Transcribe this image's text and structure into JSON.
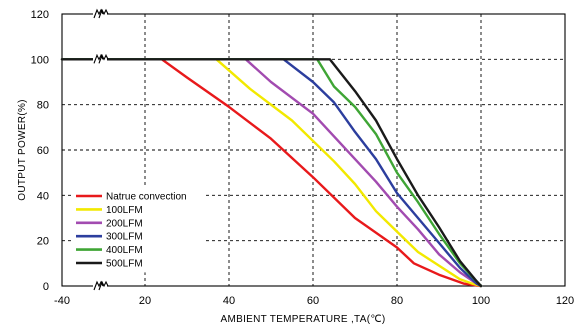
{
  "chart_data": {
    "type": "line",
    "xlabel": "AMBIENT TEMPERATURE ,TA(℃)",
    "ylabel": "OUTPUT POWER(%)",
    "xlim": [
      -40,
      120
    ],
    "ylim": [
      0,
      120
    ],
    "x_ticks": [
      "-40",
      "20",
      "40",
      "60",
      "80",
      "100",
      "120"
    ],
    "x_tick_values": [
      -40,
      20,
      40,
      60,
      80,
      100,
      120
    ],
    "y_ticks": [
      "0",
      "20",
      "40",
      "60",
      "80",
      "100",
      "120"
    ],
    "y_tick_values": [
      0,
      20,
      40,
      60,
      80,
      100,
      120
    ],
    "axis_break_x": 0,
    "grid": true,
    "legend_position": "bottom-left",
    "series": [
      {
        "name": "Natrue convection",
        "color": "#e8191b",
        "x": [
          -40,
          24,
          30,
          40,
          50,
          60,
          70,
          80,
          84,
          90,
          96,
          100
        ],
        "y": [
          100,
          100,
          92,
          79,
          65,
          48,
          30,
          17,
          10,
          5,
          1,
          0
        ]
      },
      {
        "name": "100LFM",
        "color": "#f2e900",
        "x": [
          -40,
          37,
          45,
          55,
          65,
          70,
          75,
          80,
          85,
          90,
          95,
          98,
          100
        ],
        "y": [
          100,
          100,
          87,
          73,
          55,
          45,
          33,
          24,
          15,
          9,
          3,
          1,
          0
        ]
      },
      {
        "name": "200LFM",
        "color": "#a24bb0",
        "x": [
          -40,
          44,
          50,
          60,
          70,
          75,
          80,
          85,
          90,
          95,
          99,
          100
        ],
        "y": [
          100,
          100,
          90,
          76,
          56,
          46,
          35,
          25,
          14,
          6,
          1,
          0
        ]
      },
      {
        "name": "300LFM",
        "color": "#2c3e9e",
        "x": [
          -40,
          53,
          60,
          65,
          70,
          75,
          80,
          85,
          90,
          95,
          99,
          100
        ],
        "y": [
          100,
          100,
          90,
          81,
          68,
          56,
          41,
          30,
          19,
          8,
          1,
          0
        ]
      },
      {
        "name": "400LFM",
        "color": "#3fa535",
        "x": [
          -40,
          61,
          65,
          70,
          75,
          80,
          85,
          90,
          95,
          99,
          100
        ],
        "y": [
          100,
          100,
          88,
          79,
          67,
          50,
          37,
          23,
          10,
          2,
          0
        ]
      },
      {
        "name": "500LFM",
        "color": "#1a1a1a",
        "x": [
          -40,
          64,
          70,
          75,
          80,
          85,
          90,
          95,
          99,
          100
        ],
        "y": [
          100,
          100,
          86,
          73,
          56,
          40,
          26,
          11,
          2,
          0
        ]
      }
    ]
  }
}
